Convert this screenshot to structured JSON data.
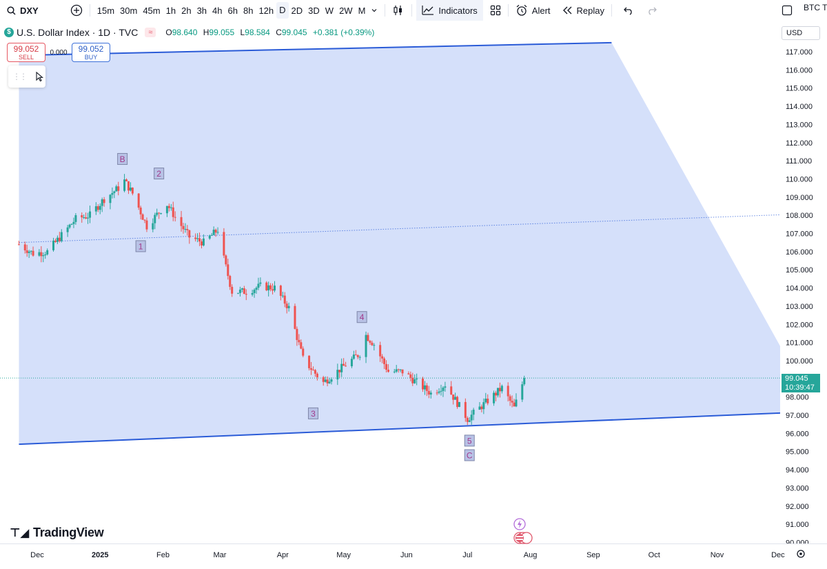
{
  "toolbar": {
    "symbol": "DXY",
    "timeframes": [
      "15m",
      "30m",
      "45m",
      "1h",
      "2h",
      "3h",
      "4h",
      "6h",
      "8h",
      "12h",
      "D",
      "2D",
      "3D",
      "W",
      "2W",
      "M"
    ],
    "active_timeframe": "D",
    "indicators_label": "Indicators",
    "alert_label": "Alert",
    "replay_label": "Replay",
    "right_label": "BTC T"
  },
  "legend": {
    "title": "U.S. Dollar Index · 1D · TVC",
    "o_label": "O",
    "o": "98.640",
    "h_label": "H",
    "h": "99.055",
    "l_label": "L",
    "l": "98.584",
    "c_label": "C",
    "c": "99.045",
    "change": "+0.381 (+0.39%)"
  },
  "trade": {
    "sell_price": "99.052",
    "sell_label": "SELL",
    "spread": "0.000",
    "buy_price": "99.052",
    "buy_label": "BUY"
  },
  "price_axis": {
    "currency": "USD",
    "ticks": [
      "117.000",
      "116.000",
      "115.000",
      "114.000",
      "113.000",
      "112.000",
      "111.000",
      "110.000",
      "109.000",
      "108.000",
      "107.000",
      "106.000",
      "105.000",
      "104.000",
      "103.000",
      "102.000",
      "101.000",
      "100.000",
      "99.000",
      "98.000",
      "97.000",
      "96.000",
      "95.000",
      "94.000",
      "93.000",
      "92.000",
      "91.000",
      "90.000"
    ],
    "last_price": "99.045",
    "countdown": "10:39:47"
  },
  "time_axis": [
    "Dec",
    "2025",
    "Feb",
    "Mar",
    "Apr",
    "May",
    "Jun",
    "Jul",
    "Aug",
    "Sep",
    "Oct",
    "Nov",
    "Dec"
  ],
  "wave_labels": [
    "B",
    "2",
    "1",
    "3",
    "4",
    "5",
    "C"
  ],
  "logo_text": "TradingView",
  "colors": {
    "up": "#26a69a",
    "down": "#ef5350",
    "channel_fill": "#d3defa",
    "channel_line": "#2a5bd7",
    "label_text": "#a23a8c",
    "label_bg": "#b8c2e6"
  },
  "chart_data": {
    "type": "candlestick",
    "symbol": "U.S. Dollar Index",
    "interval": "1D",
    "x": [
      "2024-11-22",
      "2024-11-29",
      "2024-12-06",
      "2024-12-13",
      "2024-12-20",
      "2024-12-27",
      "2025-01-03",
      "2025-01-10",
      "2025-01-13",
      "2025-01-17",
      "2025-01-24",
      "2025-01-31",
      "2025-02-03",
      "2025-02-07",
      "2025-02-14",
      "2025-02-21",
      "2025-02-28",
      "2025-03-03",
      "2025-03-07",
      "2025-03-14",
      "2025-03-21",
      "2025-03-28",
      "2025-04-04",
      "2025-04-11",
      "2025-04-17",
      "2025-04-21",
      "2025-04-30",
      "2025-05-09",
      "2025-05-12",
      "2025-05-16",
      "2025-05-23",
      "2025-05-30",
      "2025-06-06",
      "2025-06-13",
      "2025-06-20",
      "2025-06-27",
      "2025-07-01",
      "2025-07-11",
      "2025-07-18",
      "2025-07-24",
      "2025-07-29"
    ],
    "close": [
      106.4,
      105.9,
      106.0,
      106.9,
      107.8,
      108.0,
      108.9,
      109.5,
      109.9,
      109.2,
      107.4,
      108.3,
      108.6,
      107.9,
      106.8,
      106.5,
      107.2,
      105.6,
      103.8,
      103.8,
      104.1,
      104.0,
      102.9,
      100.1,
      99.3,
      98.8,
      99.6,
      100.4,
      101.4,
      100.9,
      99.4,
      99.4,
      98.8,
      98.2,
      98.7,
      97.5,
      96.8,
      97.8,
      98.5,
      97.4,
      99.045
    ],
    "ylim": [
      90,
      117.5
    ],
    "yticks": [
      117,
      116,
      115,
      114,
      113,
      112,
      111,
      110,
      109,
      108,
      107,
      106,
      105,
      104,
      103,
      102,
      101,
      100,
      99,
      98,
      97,
      96,
      95,
      94,
      93,
      92,
      91,
      90
    ],
    "channel": {
      "lower": [
        {
          "x": "2024-11-22",
          "y": 95.4
        },
        {
          "x": "2025-12-20",
          "y": 97.2
        }
      ],
      "upper": [
        {
          "x": "2024-11-22",
          "y": 116.8
        },
        {
          "x": "2025-09-10",
          "y": 117.5
        }
      ],
      "mid": [
        {
          "x": "2024-11-22",
          "y": 106.5
        },
        {
          "x": "2025-12-20",
          "y": 108.1
        }
      ]
    },
    "annotations": [
      {
        "text": "B",
        "x": "2025-01-12",
        "y": 111.1
      },
      {
        "text": "2",
        "x": "2025-01-30",
        "y": 110.3
      },
      {
        "text": "1",
        "x": "2025-01-21",
        "y": 106.3
      },
      {
        "text": "3",
        "x": "2025-04-16",
        "y": 97.1
      },
      {
        "text": "4",
        "x": "2025-05-10",
        "y": 102.4
      },
      {
        "text": "5",
        "x": "2025-07-02",
        "y": 95.6
      },
      {
        "text": "C",
        "x": "2025-07-02",
        "y": 94.8
      }
    ]
  }
}
